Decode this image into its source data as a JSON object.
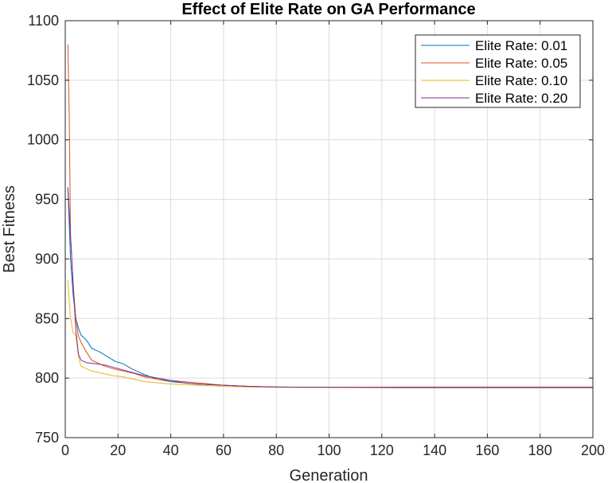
{
  "chart_data": {
    "type": "line",
    "title": "Effect of Elite Rate on GA Performance",
    "xlabel": "Generation",
    "ylabel": "Best Fitness",
    "xlim": [
      0,
      200
    ],
    "ylim": [
      750,
      1100
    ],
    "xticks": [
      0,
      20,
      40,
      60,
      80,
      100,
      120,
      140,
      160,
      180,
      200
    ],
    "yticks": [
      750,
      800,
      850,
      900,
      950,
      1000,
      1050,
      1100
    ],
    "grid": true,
    "legend_position": "top-right",
    "series": [
      {
        "name": "Elite Rate: 0.01",
        "color": "#0072BD",
        "points": [
          [
            1,
            960
          ],
          [
            2,
            900
          ],
          [
            3,
            870
          ],
          [
            4,
            850
          ],
          [
            5,
            842
          ],
          [
            6,
            836
          ],
          [
            8,
            832
          ],
          [
            10,
            825
          ],
          [
            13,
            822
          ],
          [
            16,
            818
          ],
          [
            19,
            814
          ],
          [
            22,
            812
          ],
          [
            25,
            808
          ],
          [
            28,
            805
          ],
          [
            30,
            803
          ],
          [
            35,
            799
          ],
          [
            40,
            797
          ],
          [
            45,
            796
          ],
          [
            50,
            795
          ],
          [
            55,
            794.5
          ],
          [
            60,
            794
          ],
          [
            65,
            793.5
          ],
          [
            70,
            793
          ],
          [
            80,
            792.5
          ],
          [
            100,
            792.2
          ],
          [
            130,
            792
          ],
          [
            200,
            792
          ]
        ]
      },
      {
        "name": "Elite Rate: 0.05",
        "color": "#D95319",
        "points": [
          [
            1,
            1080
          ],
          [
            1.5,
            1020
          ],
          [
            2,
            920
          ],
          [
            3,
            878
          ],
          [
            4,
            850
          ],
          [
            5,
            835
          ],
          [
            6,
            830
          ],
          [
            8,
            822
          ],
          [
            10,
            815
          ],
          [
            12,
            813
          ],
          [
            15,
            810
          ],
          [
            18,
            808
          ],
          [
            22,
            806
          ],
          [
            26,
            804
          ],
          [
            30,
            801
          ],
          [
            35,
            799
          ],
          [
            40,
            798
          ],
          [
            45,
            797
          ],
          [
            50,
            796
          ],
          [
            55,
            795
          ],
          [
            60,
            794
          ],
          [
            70,
            793
          ],
          [
            80,
            792.5
          ],
          [
            100,
            792.2
          ],
          [
            130,
            792.5
          ],
          [
            200,
            792.5
          ]
        ]
      },
      {
        "name": "Elite Rate: 0.10",
        "color": "#EDB120",
        "points": [
          [
            1,
            882
          ],
          [
            2,
            850
          ],
          [
            3,
            838
          ],
          [
            4,
            836
          ],
          [
            5,
            818
          ],
          [
            6,
            810
          ],
          [
            8,
            808
          ],
          [
            10,
            806
          ],
          [
            14,
            804
          ],
          [
            18,
            802
          ],
          [
            22,
            801
          ],
          [
            26,
            799
          ],
          [
            30,
            797
          ],
          [
            35,
            796
          ],
          [
            40,
            795
          ],
          [
            45,
            794.5
          ],
          [
            50,
            794
          ],
          [
            60,
            793
          ],
          [
            70,
            792.5
          ],
          [
            80,
            792.3
          ],
          [
            100,
            792.1
          ],
          [
            130,
            792
          ],
          [
            200,
            792
          ]
        ]
      },
      {
        "name": "Elite Rate: 0.20",
        "color": "#7E2F8E",
        "points": [
          [
            1,
            960
          ],
          [
            2,
            920
          ],
          [
            3,
            880
          ],
          [
            4,
            840
          ],
          [
            5,
            820
          ],
          [
            6,
            815
          ],
          [
            8,
            813
          ],
          [
            12,
            812
          ],
          [
            15,
            811
          ],
          [
            20,
            808
          ],
          [
            25,
            805
          ],
          [
            30,
            802
          ],
          [
            35,
            800
          ],
          [
            40,
            798
          ],
          [
            45,
            796
          ],
          [
            50,
            795
          ],
          [
            55,
            794.5
          ],
          [
            60,
            794
          ],
          [
            70,
            793
          ],
          [
            80,
            792.5
          ],
          [
            100,
            792.2
          ],
          [
            130,
            792
          ],
          [
            200,
            792
          ]
        ]
      }
    ]
  }
}
